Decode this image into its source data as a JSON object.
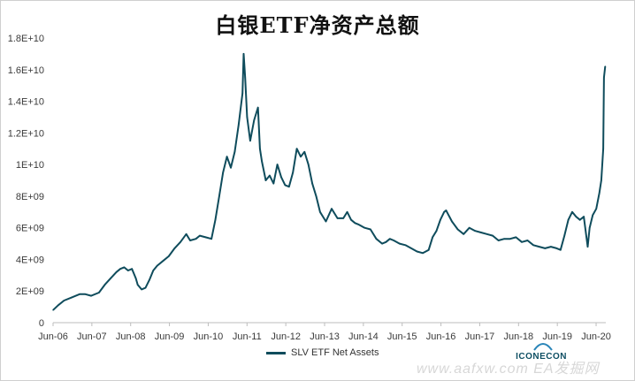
{
  "chart_data": {
    "type": "line",
    "title": "白银ETF净资产总额",
    "xlabel": "",
    "ylabel": "",
    "y_tick_labels": [
      "0",
      "2E+09",
      "4E+09",
      "6E+09",
      "8E+09",
      "1E+10",
      "1.2E+10",
      "1.4E+10",
      "1.6E+10",
      "1.8E+10"
    ],
    "y_tick_values": [
      0,
      2000000000,
      4000000000,
      6000000000,
      8000000000,
      10000000000,
      12000000000,
      14000000000,
      16000000000,
      18000000000
    ],
    "x_tick_labels": [
      "Jun-06",
      "Jun-07",
      "Jun-08",
      "Jun-09",
      "Jun-10",
      "Jun-11",
      "Jun-12",
      "Jun-13",
      "Jun-14",
      "Jun-15",
      "Jun-16",
      "Jun-17",
      "Jun-18",
      "Jun-19",
      "Jun-20"
    ],
    "x_tick_values": [
      2006.417,
      2007.417,
      2008.417,
      2009.417,
      2010.417,
      2011.417,
      2012.417,
      2013.417,
      2014.417,
      2015.417,
      2016.417,
      2017.417,
      2018.417,
      2019.417,
      2020.417
    ],
    "ylim": [
      0,
      18000000000
    ],
    "xlim": [
      2006.417,
      2020.667
    ],
    "grid": false,
    "legend_position": "bottom",
    "series": [
      {
        "name": "SLV ETF Net Assets",
        "color": "#0f4c5c",
        "x": [
          2006.42,
          2006.55,
          2006.7,
          2006.9,
          2007.1,
          2007.25,
          2007.4,
          2007.6,
          2007.75,
          2007.9,
          2008.05,
          2008.15,
          2008.25,
          2008.35,
          2008.45,
          2008.55,
          2008.6,
          2008.7,
          2008.8,
          2008.9,
          2009.0,
          2009.1,
          2009.25,
          2009.4,
          2009.55,
          2009.7,
          2009.85,
          2009.95,
          2010.1,
          2010.2,
          2010.35,
          2010.5,
          2010.6,
          2010.7,
          2010.8,
          2010.9,
          2011.0,
          2011.1,
          2011.2,
          2011.3,
          2011.33,
          2011.37,
          2011.42,
          2011.5,
          2011.6,
          2011.7,
          2011.75,
          2011.8,
          2011.9,
          2012.0,
          2012.1,
          2012.2,
          2012.3,
          2012.4,
          2012.5,
          2012.6,
          2012.7,
          2012.8,
          2012.9,
          2013.0,
          2013.1,
          2013.2,
          2013.3,
          2013.45,
          2013.6,
          2013.75,
          2013.9,
          2014.0,
          2014.1,
          2014.2,
          2014.3,
          2014.45,
          2014.6,
          2014.75,
          2014.9,
          2015.0,
          2015.1,
          2015.2,
          2015.35,
          2015.5,
          2015.65,
          2015.8,
          2015.95,
          2016.1,
          2016.2,
          2016.3,
          2016.4,
          2016.5,
          2016.55,
          2016.7,
          2016.85,
          2017.0,
          2017.15,
          2017.3,
          2017.45,
          2017.6,
          2017.75,
          2017.9,
          2018.05,
          2018.2,
          2018.35,
          2018.5,
          2018.65,
          2018.8,
          2018.95,
          2019.1,
          2019.25,
          2019.4,
          2019.5,
          2019.6,
          2019.7,
          2019.8,
          2019.9,
          2020.0,
          2020.1,
          2020.2,
          2020.25,
          2020.33,
          2020.42,
          2020.5,
          2020.55,
          2020.6,
          2020.62,
          2020.65
        ],
        "y": [
          800000000,
          1100000000,
          1400000000,
          1600000000,
          1800000000,
          1800000000,
          1700000000,
          1900000000,
          2400000000,
          2800000000,
          3200000000,
          3400000000,
          3500000000,
          3300000000,
          3400000000,
          2800000000,
          2400000000,
          2100000000,
          2200000000,
          2700000000,
          3300000000,
          3600000000,
          3900000000,
          4200000000,
          4700000000,
          5100000000,
          5600000000,
          5200000000,
          5300000000,
          5500000000,
          5400000000,
          5300000000,
          6500000000,
          8000000000,
          9500000000,
          10500000000,
          9800000000,
          10800000000,
          12500000000,
          14500000000,
          17000000000,
          15500000000,
          13000000000,
          11500000000,
          12800000000,
          13600000000,
          11000000000,
          10200000000,
          9000000000,
          9300000000,
          8800000000,
          10000000000,
          9200000000,
          8700000000,
          8600000000,
          9500000000,
          11000000000,
          10500000000,
          10800000000,
          10000000000,
          8800000000,
          8000000000,
          7000000000,
          6400000000,
          7200000000,
          6600000000,
          6600000000,
          7000000000,
          6500000000,
          6300000000,
          6200000000,
          6000000000,
          5900000000,
          5300000000,
          5000000000,
          5100000000,
          5300000000,
          5200000000,
          5000000000,
          4900000000,
          4700000000,
          4500000000,
          4400000000,
          4600000000,
          5400000000,
          5800000000,
          6500000000,
          7000000000,
          7100000000,
          6400000000,
          5900000000,
          5600000000,
          6000000000,
          5800000000,
          5700000000,
          5600000000,
          5500000000,
          5200000000,
          5300000000,
          5300000000,
          5400000000,
          5100000000,
          5200000000,
          4900000000,
          4800000000,
          4700000000,
          4800000000,
          4700000000,
          4600000000,
          5500000000,
          6500000000,
          7000000000,
          6700000000,
          6500000000,
          6700000000,
          4800000000,
          6000000000,
          6800000000,
          7200000000,
          8200000000,
          9000000000,
          11000000000,
          15500000000,
          16200000000
        ]
      }
    ]
  },
  "footer": {
    "brand": "ICONECON",
    "watermark": "www.aafxw.com    EA发掘网"
  }
}
